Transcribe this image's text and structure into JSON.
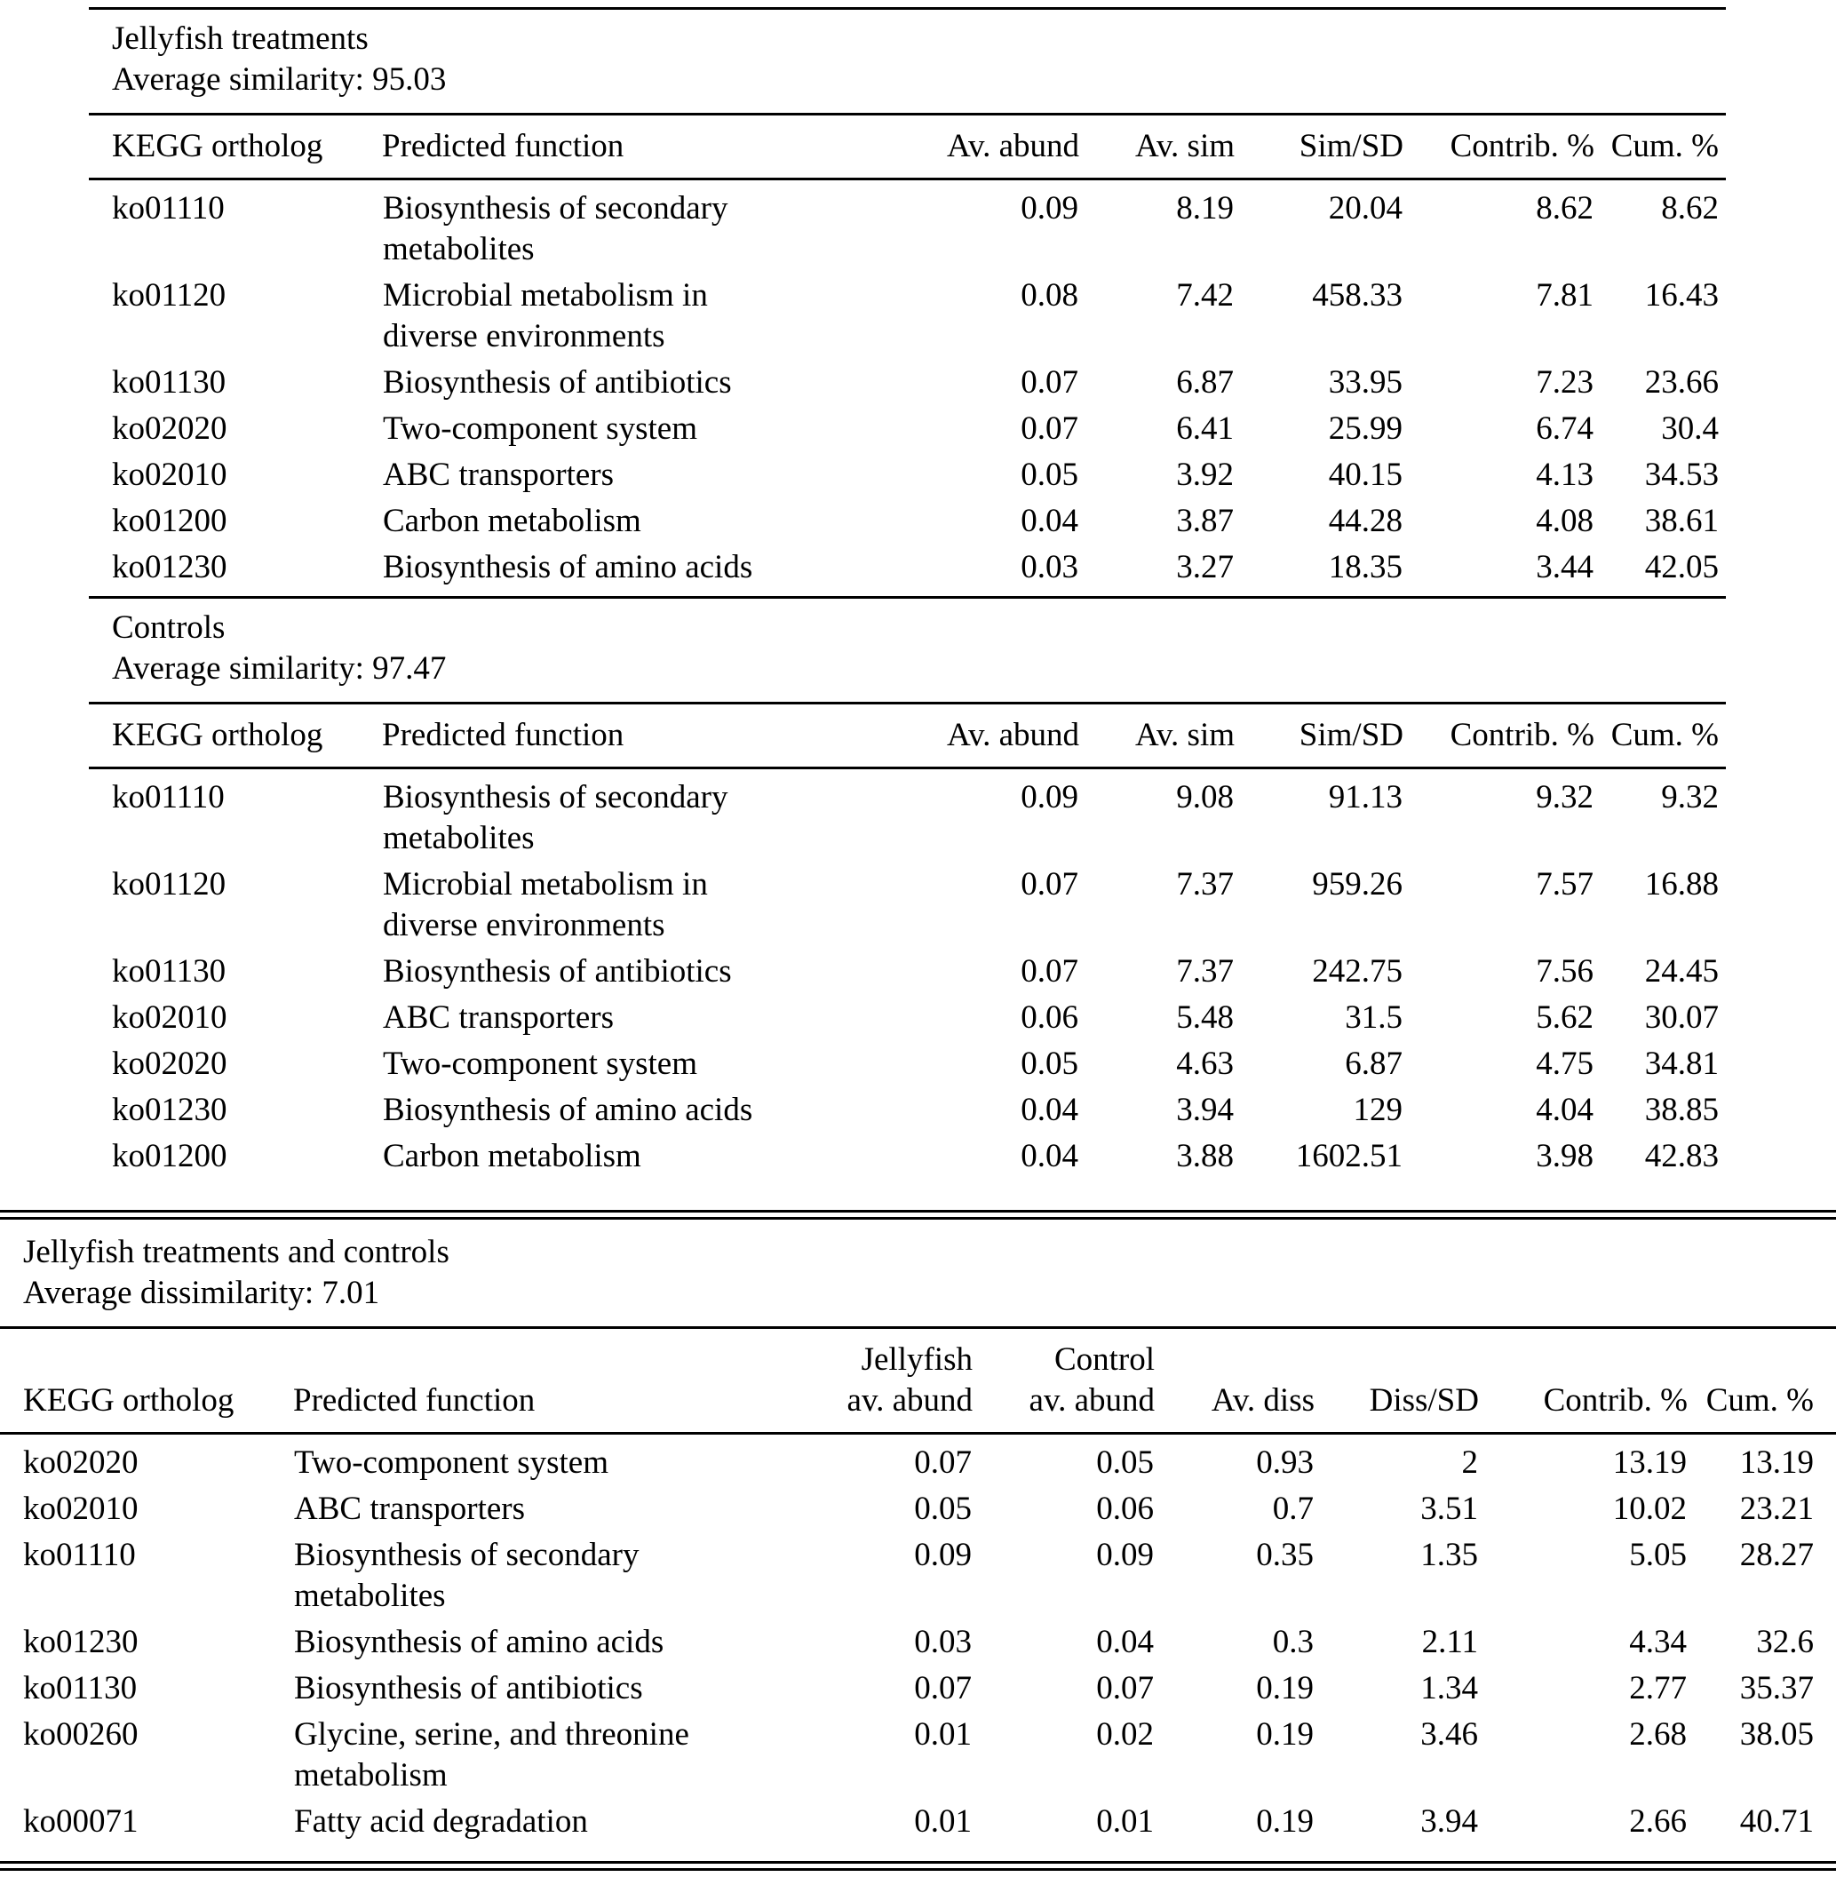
{
  "page": {
    "background_color": "#ffffff",
    "text_color": "#000000",
    "description": "SIMPER results table of KEGG ortholog predicted functions for jellyfish treatments and controls"
  },
  "sections": [
    {
      "id": "jellyfish-treatments",
      "title": "Jellyfish treatments",
      "subtitle": "Average similarity: 95.03",
      "columns": [
        {
          "label": "KEGG ortholog",
          "align": "left"
        },
        {
          "label": "Predicted function",
          "align": "left"
        },
        {
          "label": "Av. abund",
          "align": "right"
        },
        {
          "label": "Av. sim",
          "align": "right"
        },
        {
          "label": "Sim/SD",
          "align": "right"
        },
        {
          "label": "Contrib. %",
          "align": "right"
        },
        {
          "label": "Cum. %",
          "align": "right"
        }
      ],
      "rows": [
        [
          "ko01110",
          "Biosynthesis of secondary metabolites",
          "0.09",
          "8.19",
          "20.04",
          "8.62",
          "8.62"
        ],
        [
          "ko01120",
          "Microbial metabolism in diverse environments",
          "0.08",
          "7.42",
          "458.33",
          "7.81",
          "16.43"
        ],
        [
          "ko01130",
          "Biosynthesis of antibiotics",
          "0.07",
          "6.87",
          "33.95",
          "7.23",
          "23.66"
        ],
        [
          "ko02020",
          "Two-component system",
          "0.07",
          "6.41",
          "25.99",
          "6.74",
          "30.4"
        ],
        [
          "ko02010",
          "ABC transporters",
          "0.05",
          "3.92",
          "40.15",
          "4.13",
          "34.53"
        ],
        [
          "ko01200",
          "Carbon metabolism",
          "0.04",
          "3.87",
          "44.28",
          "4.08",
          "38.61"
        ],
        [
          "ko01230",
          "Biosynthesis of amino acids",
          "0.03",
          "3.27",
          "18.35",
          "3.44",
          "42.05"
        ]
      ]
    },
    {
      "id": "controls",
      "title": "Controls",
      "subtitle": "Average similarity: 97.47",
      "columns": [
        {
          "label": "KEGG ortholog",
          "align": "left"
        },
        {
          "label": "Predicted function",
          "align": "left"
        },
        {
          "label": "Av. abund",
          "align": "right"
        },
        {
          "label": "Av. sim",
          "align": "right"
        },
        {
          "label": "Sim/SD",
          "align": "right"
        },
        {
          "label": "Contrib. %",
          "align": "right"
        },
        {
          "label": "Cum. %",
          "align": "right"
        }
      ],
      "rows": [
        [
          "ko01110",
          "Biosynthesis of secondary metabolites",
          "0.09",
          "9.08",
          "91.13",
          "9.32",
          "9.32"
        ],
        [
          "ko01120",
          "Microbial metabolism in diverse environments",
          "0.07",
          "7.37",
          "959.26",
          "7.57",
          "16.88"
        ],
        [
          "ko01130",
          "Biosynthesis of antibiotics",
          "0.07",
          "7.37",
          "242.75",
          "7.56",
          "24.45"
        ],
        [
          "ko02010",
          "ABC transporters",
          "0.06",
          "5.48",
          "31.5",
          "5.62",
          "30.07"
        ],
        [
          "ko02020",
          "Two-component system",
          "0.05",
          "4.63",
          "6.87",
          "4.75",
          "34.81"
        ],
        [
          "ko01230",
          "Biosynthesis of amino acids",
          "0.04",
          "3.94",
          "129",
          "4.04",
          "38.85"
        ],
        [
          "ko01200",
          "Carbon metabolism",
          "0.04",
          "3.88",
          "1602.51",
          "3.98",
          "42.83"
        ]
      ]
    },
    {
      "id": "jellyfish-treatments-and-controls",
      "title": "Jellyfish treatments and controls",
      "subtitle": "Average dissimilarity: 7.01",
      "columns": [
        {
          "label": "KEGG ortholog",
          "align": "left"
        },
        {
          "label": "Predicted function",
          "align": "left"
        },
        {
          "top": "Jellyfish",
          "label": "av. abund",
          "align": "right"
        },
        {
          "top": "Control",
          "label": "av. abund",
          "align": "right"
        },
        {
          "label": "Av. diss",
          "align": "right"
        },
        {
          "label": "Diss/SD",
          "align": "right"
        },
        {
          "label": "Contrib. %",
          "align": "right"
        },
        {
          "label": "Cum. %",
          "align": "right"
        }
      ],
      "rows": [
        [
          "ko02020",
          "Two-component system",
          "0.07",
          "0.05",
          "0.93",
          "2",
          "13.19",
          "13.19"
        ],
        [
          "ko02010",
          "ABC transporters",
          "0.05",
          "0.06",
          "0.7",
          "3.51",
          "10.02",
          "23.21"
        ],
        [
          "ko01110",
          "Biosynthesis of secondary metabolites",
          "0.09",
          "0.09",
          "0.35",
          "1.35",
          "5.05",
          "28.27"
        ],
        [
          "ko01230",
          "Biosynthesis of amino acids",
          "0.03",
          "0.04",
          "0.3",
          "2.11",
          "4.34",
          "32.6"
        ],
        [
          "ko01130",
          "Biosynthesis of antibiotics",
          "0.07",
          "0.07",
          "0.19",
          "1.34",
          "2.77",
          "35.37"
        ],
        [
          "ko00260",
          "Glycine, serine, and threonine metabolism",
          "0.01",
          "0.02",
          "0.19",
          "3.46",
          "2.68",
          "38.05"
        ],
        [
          "ko00071",
          "Fatty acid degradation",
          "0.01",
          "0.01",
          "0.19",
          "3.94",
          "2.66",
          "40.71"
        ]
      ]
    }
  ]
}
